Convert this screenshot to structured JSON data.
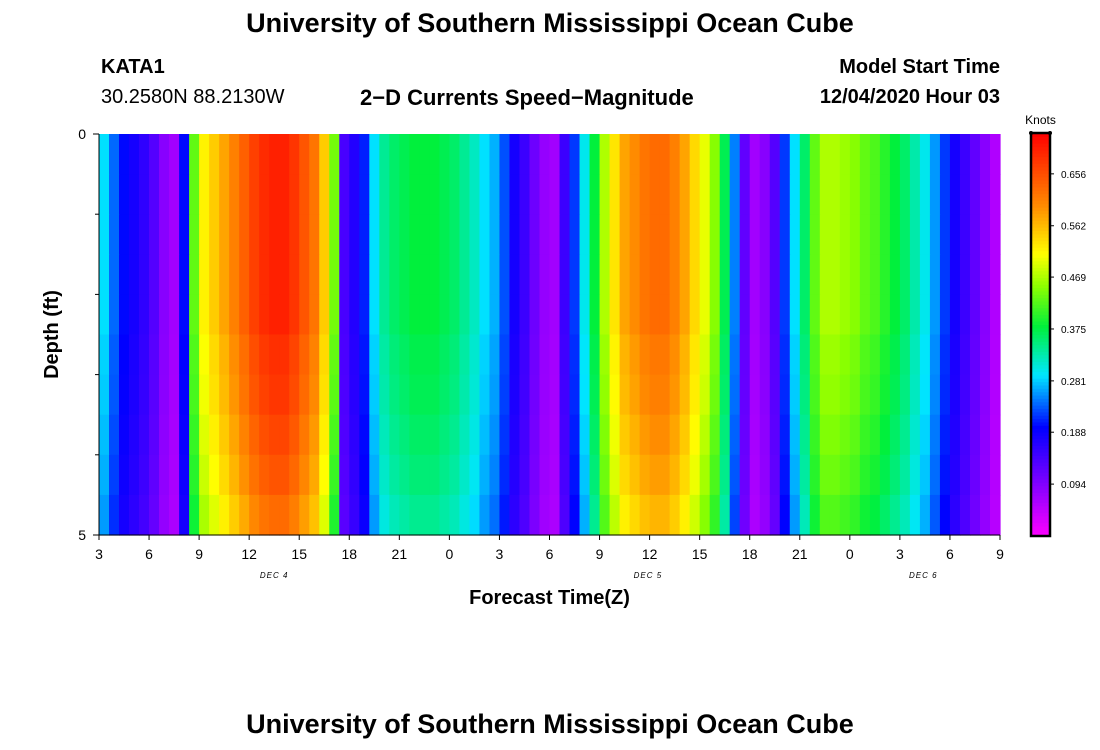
{
  "page": {
    "title_top": "University of Southern Mississippi Ocean Cube",
    "title_bottom": "University of Southern Mississippi Ocean Cube",
    "station_id": "KATA1",
    "station_coords": "30.2580N 88.2130W",
    "chart_title": "2−D Currents Speed−Magnitude",
    "model_start_label": "Model Start Time",
    "model_start_value": "12/04/2020 Hour 03"
  },
  "chart_data": {
    "type": "heatmap",
    "title": "2−D Currents Speed−Magnitude",
    "xlabel": "Forecast Time(Z)",
    "ylabel": "Depth (ft)",
    "x_hours_range": [
      3,
      57
    ],
    "x_tick_labels": [
      "3",
      "6",
      "9",
      "12",
      "15",
      "18",
      "21",
      "0",
      "3",
      "6",
      "9",
      "12",
      "15",
      "18",
      "21",
      "0",
      "3",
      "6",
      "9"
    ],
    "day_labels": [
      {
        "hour": 13.5,
        "label": "DEC 4"
      },
      {
        "hour": 35.9,
        "label": "DEC 5"
      },
      {
        "hour": 52.4,
        "label": "DEC 6"
      }
    ],
    "y_range": [
      0,
      5
    ],
    "y_tick_labels": [
      "0",
      "5"
    ],
    "y_minor_ticks": [
      1,
      2,
      3,
      4
    ],
    "colorbar": {
      "unit": "Knots",
      "min": 0.0,
      "max": 0.73,
      "ticks": [
        "0.094",
        "0.188",
        "0.281",
        "0.375",
        "0.469",
        "0.562",
        "0.656"
      ],
      "tick_values": [
        0.094,
        0.188,
        0.281,
        0.375,
        0.469,
        0.562,
        0.656
      ]
    },
    "speed_by_hour": [
      0.29,
      0.24,
      0.2,
      0.18,
      0.16,
      0.13,
      0.09,
      0.07,
      0.2,
      0.43,
      0.52,
      0.55,
      0.58,
      0.61,
      0.64,
      0.67,
      0.69,
      0.7,
      0.7,
      0.68,
      0.65,
      0.62,
      0.55,
      0.44,
      0.14,
      0.17,
      0.21,
      0.29,
      0.34,
      0.36,
      0.37,
      0.38,
      0.38,
      0.38,
      0.37,
      0.36,
      0.34,
      0.32,
      0.29,
      0.27,
      0.23,
      0.18,
      0.15,
      0.11,
      0.08,
      0.07,
      0.15,
      0.22,
      0.3,
      0.38,
      0.47,
      0.53,
      0.58,
      0.6,
      0.62,
      0.63,
      0.63,
      0.61,
      0.58,
      0.54,
      0.5,
      0.45,
      0.37,
      0.25,
      0.12,
      0.07,
      0.09,
      0.13,
      0.22,
      0.29,
      0.36,
      0.43,
      0.47,
      0.47,
      0.46,
      0.45,
      0.43,
      0.42,
      0.4,
      0.38,
      0.36,
      0.33,
      0.3,
      0.26,
      0.22,
      0.18,
      0.15,
      0.12,
      0.09,
      0.06
    ],
    "depth_factors": [
      1.0,
      1.0,
      1.0,
      1.0,
      1.0,
      0.98,
      0.97,
      0.95,
      0.93,
      0.9
    ]
  }
}
